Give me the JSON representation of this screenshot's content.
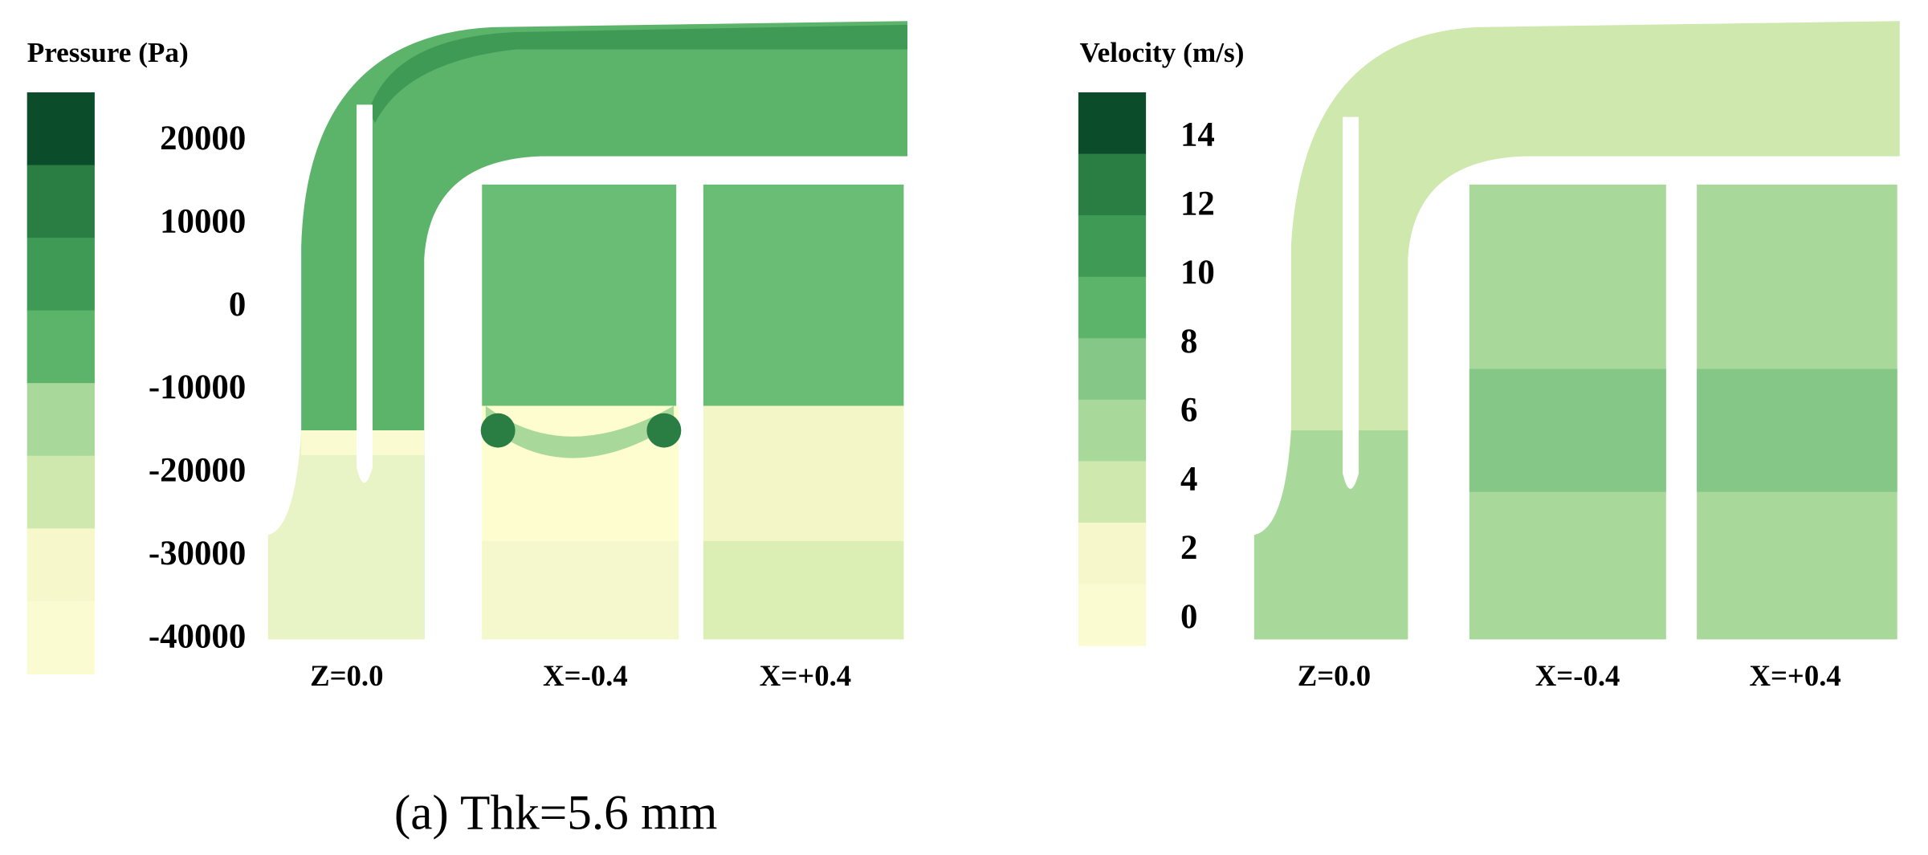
{
  "panels": [
    {
      "colorbar": {
        "title": "Pressure (Pa)",
        "ticks": [
          20000,
          10000,
          0,
          -10000,
          -20000,
          -30000,
          -40000
        ]
      },
      "slices": [
        "Z=0.0",
        "X=-0.4",
        "X=+0.4"
      ]
    },
    {
      "colorbar": {
        "title": "Velocity (m/s)",
        "ticks": [
          14,
          12,
          10,
          8,
          6,
          4,
          2,
          0
        ]
      },
      "slices": [
        "Z=0.0",
        "X=-0.4",
        "X=+0.4"
      ]
    }
  ],
  "caption": "(a) Thk=5.6 mm"
}
